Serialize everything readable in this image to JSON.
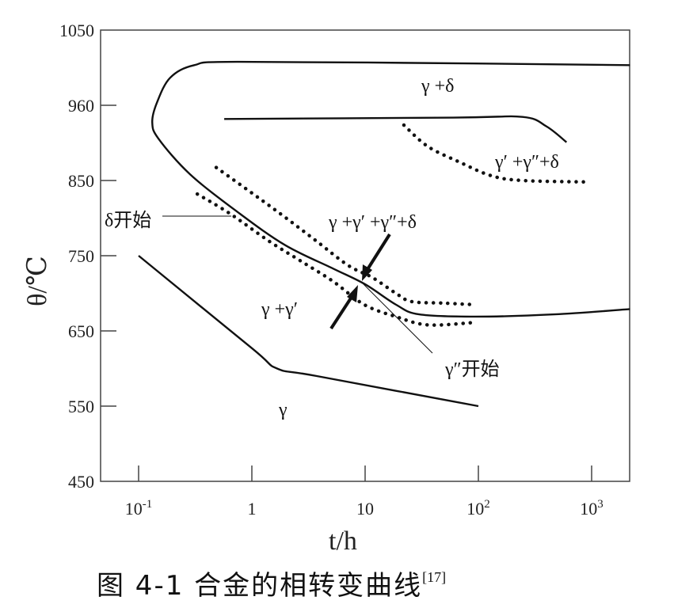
{
  "chart_data": {
    "type": "line",
    "title": "",
    "xlabel": "t/h",
    "ylabel": "θ/℃",
    "xscale": "log",
    "xlim": [
      0.046,
      2160
    ],
    "ylim": [
      450,
      1050
    ],
    "x_ticks": [
      0.1,
      1,
      10,
      100,
      1000
    ],
    "x_tick_labels": [
      {
        "base": "10",
        "exp": "-1"
      },
      {
        "base": "1",
        "exp": ""
      },
      {
        "base": "10",
        "exp": ""
      },
      {
        "base": "10",
        "exp": "2"
      },
      {
        "base": "10",
        "exp": "3"
      }
    ],
    "y_ticks": [
      450,
      550,
      650,
      750,
      850,
      960,
      1050
    ],
    "grid": false,
    "series": [
      {
        "name": "δ-start",
        "style": "solid",
        "points": [
          [
            2180,
            1008
          ],
          [
            94,
            1010
          ],
          [
            0.75,
            1012
          ],
          [
            0.31,
            1008
          ],
          [
            0.19,
            993
          ],
          [
            0.145,
            963
          ],
          [
            0.132,
            935
          ],
          [
            0.15,
            911
          ],
          [
            0.285,
            859
          ],
          [
            0.75,
            808
          ],
          [
            1.97,
            764
          ],
          [
            5.2,
            733
          ],
          [
            10,
            712
          ],
          [
            18.7,
            685
          ],
          [
            30,
            672
          ],
          [
            94,
            669
          ],
          [
            470,
            672
          ],
          [
            2180,
            679
          ]
        ]
      },
      {
        "name": "γ′+γ″+δ boundary",
        "style": "solid",
        "points": [
          [
            0.57,
            940
          ],
          [
            60,
            942
          ],
          [
            246,
            943
          ],
          [
            400,
            929
          ],
          [
            600,
            906
          ]
        ]
      },
      {
        "name": "γ boundary",
        "style": "solid",
        "points": [
          [
            0.1,
            750
          ],
          [
            1.0,
            627
          ],
          [
            1.67,
            600
          ],
          [
            3.74,
            590
          ],
          [
            100,
            550
          ]
        ]
      },
      {
        "name": "upper dotted",
        "style": "dotted",
        "points": [
          [
            0.485,
            869
          ],
          [
            1.03,
            832
          ],
          [
            1.97,
            801
          ],
          [
            3.75,
            769
          ],
          [
            7.1,
            737
          ],
          [
            11.6,
            721
          ],
          [
            18.7,
            700
          ],
          [
            25.8,
            689
          ],
          [
            49,
            687
          ],
          [
            89,
            685
          ]
        ]
      },
      {
        "name": "lower dotted",
        "style": "dotted",
        "points": [
          [
            0.33,
            832
          ],
          [
            0.64,
            806
          ],
          [
            1.43,
            769
          ],
          [
            2.7,
            743
          ],
          [
            5.2,
            716
          ],
          [
            9.8,
            685
          ],
          [
            18.7,
            669
          ],
          [
            35.6,
            658
          ],
          [
            89,
            661
          ]
        ]
      },
      {
        "name": "top-right dotted",
        "style": "dotted",
        "points": [
          [
            22,
            931
          ],
          [
            35.6,
            900
          ],
          [
            68,
            877
          ],
          [
            130,
            857
          ],
          [
            246,
            850
          ],
          [
            970,
            848
          ]
        ]
      }
    ],
    "annotations": {
      "gamma_delta": "γ +δ",
      "gp_gpp_delta": "γ′ +γ″+δ",
      "g_gp_gpp_delta": "γ +γ′ +γ″+δ",
      "g_gp": "γ +γ′",
      "gamma": "γ",
      "delta_start": "δ开始",
      "gpp_start": "γ″开始"
    }
  },
  "caption": {
    "text": "图 4-1  合金的相转变曲线",
    "ref": "[17]"
  }
}
